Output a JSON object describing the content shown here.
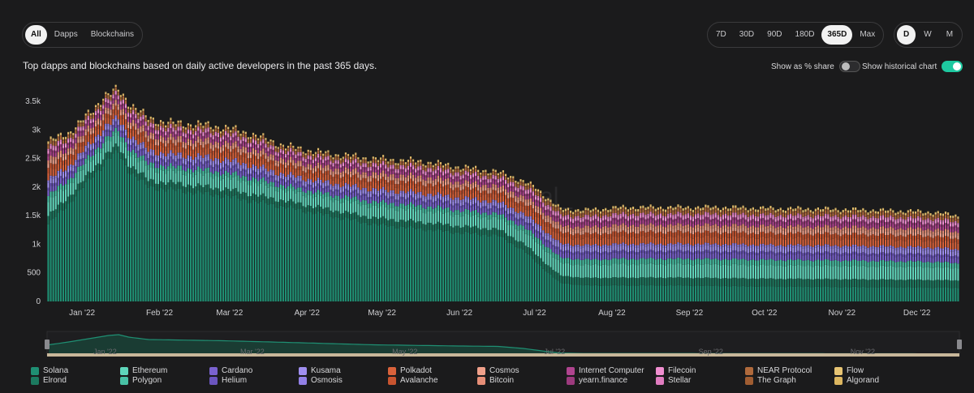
{
  "filters": {
    "items": [
      {
        "label": "All",
        "active": true
      },
      {
        "label": "Dapps",
        "active": false
      },
      {
        "label": "Blockchains",
        "active": false
      }
    ]
  },
  "ranges": {
    "items": [
      {
        "label": "7D",
        "active": false
      },
      {
        "label": "30D",
        "active": false
      },
      {
        "label": "90D",
        "active": false
      },
      {
        "label": "180D",
        "active": false
      },
      {
        "label": "365D",
        "active": true
      },
      {
        "label": "Max",
        "active": false
      }
    ]
  },
  "granularity": {
    "items": [
      {
        "label": "D",
        "active": true
      },
      {
        "label": "W",
        "active": false
      },
      {
        "label": "M",
        "active": false
      }
    ]
  },
  "subtitle": "Top dapps and blockchains based on daily active developers in the past 365 days.",
  "toggles": {
    "share_label": "Show as % share",
    "share_on": false,
    "historical_label": "Show historical chart",
    "historical_on": true
  },
  "watermark": "...al_",
  "chart_data": {
    "type": "stacked-bar",
    "title": "Daily active developers",
    "ylim": [
      0,
      3600
    ],
    "y_ticks": [
      "0",
      "500",
      "1k",
      "1.5k",
      "2k",
      "2.5k",
      "3k",
      "3.5k"
    ],
    "y_tick_values": [
      0,
      500,
      1000,
      1500,
      2000,
      2500,
      3000,
      3500
    ],
    "x_ticks": [
      "Jan '22",
      "Feb '22",
      "Mar '22",
      "Apr '22",
      "May '22",
      "Jun '22",
      "Jul '22",
      "Aug '22",
      "Sep '22",
      "Oct '22",
      "Nov '22",
      "Dec '22"
    ],
    "x_tick_days": [
      14,
      45,
      73,
      104,
      134,
      165,
      195,
      226,
      257,
      287,
      318,
      348
    ],
    "days_total": 365,
    "total_anchors": {
      "days": [
        0,
        8,
        18,
        22,
        28,
        32,
        40,
        50,
        60,
        70,
        80,
        95,
        110,
        130,
        150,
        165,
        178,
        185,
        195,
        200,
        205,
        215,
        230,
        250,
        270,
        290,
        310,
        330,
        345,
        355,
        364
      ],
      "values": [
        2800,
        2950,
        3350,
        3600,
        3700,
        3500,
        3200,
        3120,
        3100,
        3050,
        2950,
        2720,
        2600,
        2500,
        2450,
        2350,
        2280,
        2200,
        2000,
        1800,
        1620,
        1600,
        1650,
        1650,
        1650,
        1630,
        1620,
        1600,
        1580,
        1560,
        1500
      ]
    },
    "solana_anchors": {
      "days": [
        0,
        8,
        18,
        24,
        28,
        32,
        40,
        50,
        70,
        95,
        130,
        165,
        180,
        190,
        200,
        205,
        215,
        250,
        290,
        330,
        364
      ],
      "values": [
        1350,
        1700,
        2200,
        2500,
        2600,
        2300,
        2000,
        1950,
        1850,
        1650,
        1350,
        1200,
        1150,
        900,
        500,
        320,
        280,
        280,
        260,
        250,
        240
      ]
    },
    "series": [
      {
        "name": "Solana",
        "color": "#1f8f73",
        "share": 0
      },
      {
        "name": "Elrond",
        "color": "#1c7a60",
        "share": 0.1
      },
      {
        "name": "Ethereum",
        "color": "#5fd6bb",
        "share": 0.17
      },
      {
        "name": "Polygon",
        "color": "#48c1a5",
        "share": 0.07
      },
      {
        "name": "Cardano",
        "color": "#7a62cf",
        "share": 0.07
      },
      {
        "name": "Helium",
        "color": "#6b55bf",
        "share": 0.03
      },
      {
        "name": "Kusama",
        "color": "#a08ff0",
        "share": 0.06
      },
      {
        "name": "Osmosis",
        "color": "#9280e6",
        "share": 0.03
      },
      {
        "name": "Polkadot",
        "color": "#d9623b",
        "share": 0.09
      },
      {
        "name": "Avalanche",
        "color": "#c8542f",
        "share": 0.06
      },
      {
        "name": "Cosmos",
        "color": "#f0a08a",
        "share": 0.05
      },
      {
        "name": "Bitcoin",
        "color": "#e68e77",
        "share": 0.04
      },
      {
        "name": "Internet Computer",
        "color": "#b0448f",
        "share": 0.05
      },
      {
        "name": "yearn.finance",
        "color": "#9c3a7d",
        "share": 0.03
      },
      {
        "name": "Filecoin",
        "color": "#f08ed0",
        "share": 0.04
      },
      {
        "name": "Stellar",
        "color": "#e07cc0",
        "share": 0.02
      },
      {
        "name": "NEAR Protocol",
        "color": "#b06a3c",
        "share": 0.04
      },
      {
        "name": "The Graph",
        "color": "#a05d32",
        "share": 0.02
      },
      {
        "name": "Flow",
        "color": "#e7c473",
        "share": 0.02
      },
      {
        "name": "Algorand",
        "color": "#dcb660",
        "share": 0.01
      }
    ],
    "navigator_x_ticks": [
      "Jan '22",
      "Mar '22",
      "May '22",
      "Jul '22",
      "Sep '22",
      "Nov '22"
    ]
  }
}
